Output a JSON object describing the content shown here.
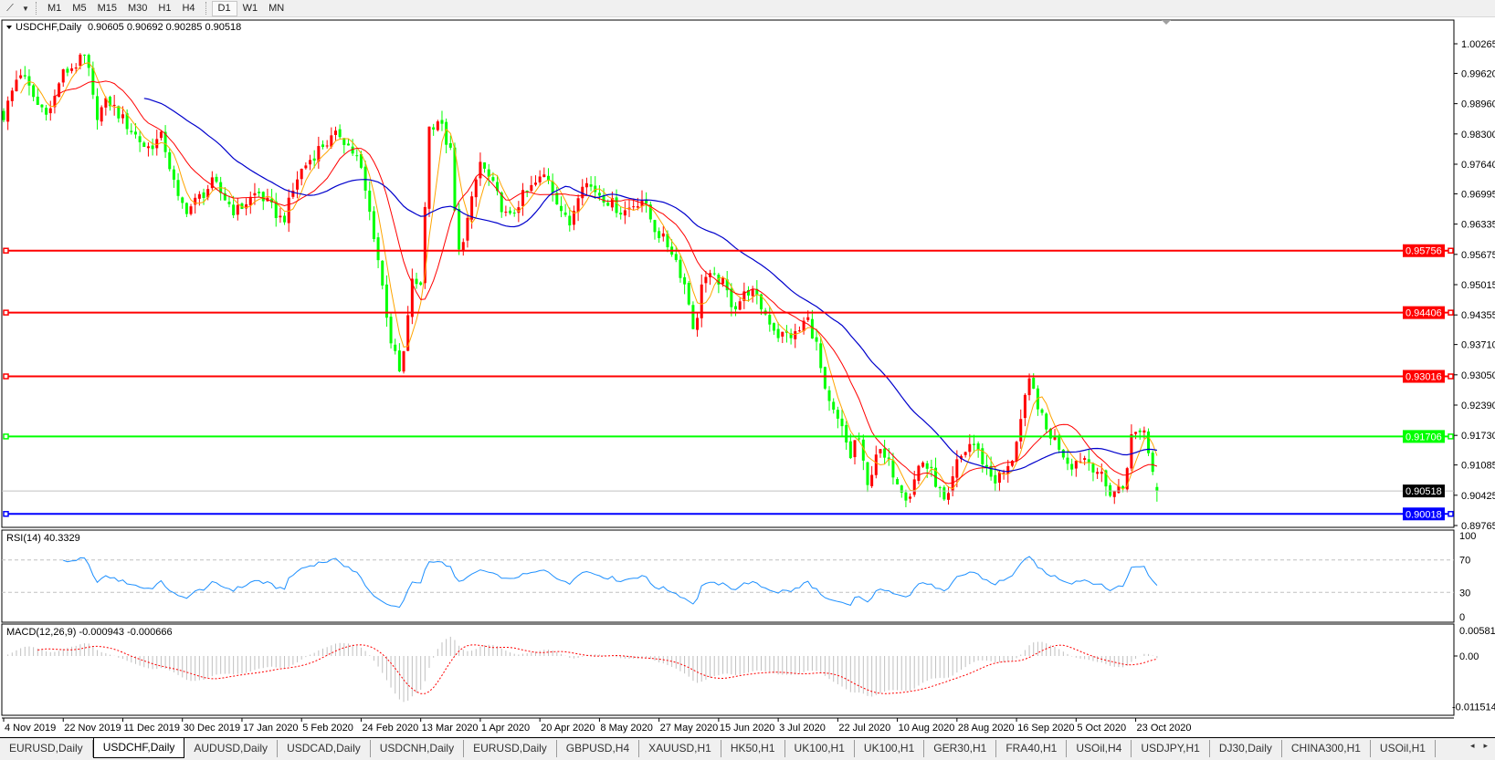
{
  "toolbar": {
    "line_tool_icon": "line-tool-icon",
    "timeframes": [
      "M1",
      "M5",
      "M15",
      "M30",
      "H1",
      "H4",
      "D1",
      "W1",
      "MN"
    ],
    "active_timeframe": "D1"
  },
  "chart": {
    "symbol_label": "USDCHF,Daily",
    "ohlc_label": "0.90605 0.90692 0.90285 0.90518",
    "current_price": "0.90518",
    "levels": [
      {
        "price": "0.95756",
        "color": "#ff0000"
      },
      {
        "price": "0.94406",
        "color": "#ff0000"
      },
      {
        "price": "0.93016",
        "color": "#ff0000"
      },
      {
        "price": "0.91706",
        "color": "#00ff00"
      },
      {
        "price": "0.90018",
        "color": "#0000ff"
      }
    ],
    "price_ticks": [
      "1.00265",
      "0.99620",
      "0.98960",
      "0.98300",
      "0.97640",
      "0.96995",
      "0.96335",
      "0.95675",
      "0.95015",
      "0.94355",
      "0.93710",
      "0.93050",
      "0.92390",
      "0.91730",
      "0.91085",
      "0.90425",
      "0.89765"
    ],
    "time_ticks": [
      "4 Nov 2019",
      "22 Nov 2019",
      "11 Dec 2019",
      "30 Dec 2019",
      "17 Jan 2020",
      "5 Feb 2020",
      "24 Feb 2020",
      "13 Mar 2020",
      "1 Apr 2020",
      "20 Apr 2020",
      "8 May 2020",
      "27 May 2020",
      "15 Jun 2020",
      "3 Jul 2020",
      "22 Jul 2020",
      "10 Aug 2020",
      "28 Aug 2020",
      "16 Sep 2020",
      "5 Oct 2020",
      "23 Oct 2020"
    ]
  },
  "rsi": {
    "label": "RSI(14) 40.3329",
    "ticks": [
      "100",
      "70",
      "30",
      "0"
    ],
    "color": "#1e90ff"
  },
  "macd": {
    "label": "MACD(12,26,9) -0.000943 -0.000666",
    "ticks": [
      "0.005818",
      "0.00",
      "-0.011514"
    ],
    "signal_color": "#ff0000",
    "histogram_color": "#c0c0c0"
  },
  "tabs": {
    "items": [
      "EURUSD,Daily",
      "USDCHF,Daily",
      "AUDUSD,Daily",
      "USDCAD,Daily",
      "USDCNH,Daily",
      "EURUSD,Daily",
      "GBPUSD,H4",
      "XAUUSD,H1",
      "HK50,H1",
      "UK100,H1",
      "UK100,H1",
      "GER30,H1",
      "FRA40,H1",
      "USOil,H4",
      "USDJPY,H1",
      "DJ30,Daily",
      "CHINA300,H1",
      "USOil,H1"
    ],
    "active_index": 1,
    "scroll_left": "◂",
    "scroll_right": "▸"
  },
  "chart_data": {
    "type": "candlestick",
    "symbol": "USDCHF",
    "timeframe": "Daily",
    "ylim": [
      0.89765,
      1.00265
    ],
    "bull_color": "#ff0000",
    "bear_color": "#00ff00",
    "moving_averages": [
      {
        "color": "#ffa500"
      },
      {
        "color": "#ff0000"
      },
      {
        "color": "#0000cc"
      }
    ],
    "last_bar": {
      "open": 0.90605,
      "high": 0.90692,
      "low": 0.90285,
      "close": 0.90518
    },
    "close_path": [
      [
        "2019-11-04",
        0.9869
      ],
      [
        "2019-11-09",
        0.9969
      ],
      [
        "2019-11-15",
        0.9889
      ],
      [
        "2019-11-19",
        0.9883
      ],
      [
        "2019-11-22",
        0.9957
      ],
      [
        "2019-11-30",
        0.9999
      ],
      [
        "2019-12-03",
        0.9869
      ],
      [
        "2019-12-07",
        0.9903
      ],
      [
        "2019-12-12",
        0.9857
      ],
      [
        "2019-12-19",
        0.9798
      ],
      [
        "2019-12-24",
        0.9824
      ],
      [
        "2019-12-29",
        0.9684
      ],
      [
        "2020-01-01",
        0.9665
      ],
      [
        "2020-01-09",
        0.9724
      ],
      [
        "2020-01-16",
        0.9659
      ],
      [
        "2020-01-23",
        0.9704
      ],
      [
        "2020-01-31",
        0.9639
      ],
      [
        "2020-02-05",
        0.9744
      ],
      [
        "2020-02-12",
        0.9804
      ],
      [
        "2020-02-18",
        0.983
      ],
      [
        "2020-02-24",
        0.977
      ],
      [
        "2020-02-29",
        0.9599
      ],
      [
        "2020-03-05",
        0.938
      ],
      [
        "2020-03-08",
        0.9301
      ],
      [
        "2020-03-10",
        0.94
      ],
      [
        "2020-03-12",
        0.9539
      ],
      [
        "2020-03-14",
        0.9452
      ],
      [
        "2020-03-17",
        0.9843
      ],
      [
        "2020-03-20",
        0.9863
      ],
      [
        "2020-03-24",
        0.9784
      ],
      [
        "2020-03-26",
        0.9559
      ],
      [
        "2020-03-30",
        0.9665
      ],
      [
        "2020-04-02",
        0.977
      ],
      [
        "2020-04-06",
        0.9718
      ],
      [
        "2020-04-11",
        0.9639
      ],
      [
        "2020-04-15",
        0.969
      ],
      [
        "2020-04-23",
        0.9744
      ],
      [
        "2020-04-30",
        0.9625
      ],
      [
        "2020-05-04",
        0.973
      ],
      [
        "2020-05-09",
        0.9704
      ],
      [
        "2020-05-17",
        0.9659
      ],
      [
        "2020-05-23",
        0.969
      ],
      [
        "2020-05-27",
        0.9625
      ],
      [
        "2020-06-02",
        0.9571
      ],
      [
        "2020-06-06",
        0.9492
      ],
      [
        "2020-06-09",
        0.9386
      ],
      [
        "2020-06-11",
        0.9519
      ],
      [
        "2020-06-17",
        0.9511
      ],
      [
        "2020-06-21",
        0.9452
      ],
      [
        "2020-06-26",
        0.9492
      ],
      [
        "2020-06-29",
        0.946
      ],
      [
        "2020-07-05",
        0.9392
      ],
      [
        "2020-07-11",
        0.9392
      ],
      [
        "2020-07-14",
        0.9432
      ],
      [
        "2020-07-17",
        0.9372
      ],
      [
        "2020-07-20",
        0.9253
      ],
      [
        "2020-07-25",
        0.9187
      ],
      [
        "2020-07-28",
        0.9122
      ],
      [
        "2020-07-30",
        0.9187
      ],
      [
        "2020-08-02",
        0.9054
      ],
      [
        "2020-08-05",
        0.9142
      ],
      [
        "2020-08-09",
        0.9108
      ],
      [
        "2020-08-15",
        0.9034
      ],
      [
        "2020-08-19",
        0.9122
      ],
      [
        "2020-08-23",
        0.9082
      ],
      [
        "2020-08-27",
        0.9014
      ],
      [
        "2020-08-30",
        0.9108
      ],
      [
        "2020-09-04",
        0.9161
      ],
      [
        "2020-09-07",
        0.9122
      ],
      [
        "2020-09-11",
        0.9074
      ],
      [
        "2020-09-16",
        0.9102
      ],
      [
        "2020-09-19",
        0.9193
      ],
      [
        "2020-09-22",
        0.9287
      ],
      [
        "2020-09-24",
        0.9261
      ],
      [
        "2020-09-27",
        0.9187
      ],
      [
        "2020-09-30",
        0.9167
      ],
      [
        "2020-10-05",
        0.9108
      ],
      [
        "2020-10-09",
        0.9128
      ],
      [
        "2020-10-14",
        0.9094
      ],
      [
        "2020-10-17",
        0.9048
      ],
      [
        "2020-10-22",
        0.9062
      ],
      [
        "2020-10-24",
        0.9167
      ],
      [
        "2020-10-28",
        0.9193
      ],
      [
        "2020-11-01",
        0.9062
      ],
      [
        "2020-11-02",
        0.9052
      ]
    ]
  }
}
